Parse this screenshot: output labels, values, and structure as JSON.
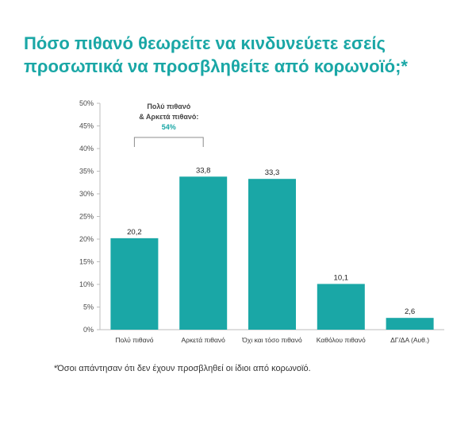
{
  "title_lines": [
    "Πόσο πιθανό θεωρείτε να κινδυνεύετε εσείς",
    "προσωπικά να προσβληθείτε από κορωνοϊό;*"
  ],
  "footnote": "*Όσοι απάντησαν ότι δεν έχουν προσβληθεί οι ίδιοι από κορωνοϊό.",
  "colors": {
    "bar": "#1aa7a6",
    "title": "#1aa7a6",
    "annotation_value": "#1aa7a6"
  },
  "chart_data": {
    "type": "bar",
    "title": "Πόσο πιθανό θεωρείτε να κινδυνεύετε εσείς προσωπικά να προσβληθείτε από κορωνοϊό;*",
    "categories": [
      "Πολύ πιθανό",
      "Αρκετά πιθανό",
      "Όχι και τόσο πιθανό",
      "Καθόλου πιθανό",
      "ΔΓ/ΔΑ (Αυθ.)"
    ],
    "values": [
      20.2,
      33.8,
      33.3,
      10.1,
      2.6
    ],
    "value_labels": [
      "20,2",
      "33,8",
      "33,3",
      "10,1",
      "2,6"
    ],
    "ylim": [
      0,
      50
    ],
    "y_ticks": [
      0,
      5,
      10,
      15,
      20,
      25,
      30,
      35,
      40,
      45,
      50
    ],
    "y_tick_labels": [
      "0%",
      "5%",
      "10%",
      "15%",
      "20%",
      "25%",
      "30%",
      "35%",
      "40%",
      "45%",
      "50%"
    ],
    "xlabel": "",
    "ylabel": "",
    "grid": false,
    "annotation": {
      "lines": [
        "Πολύ πιθανό",
        "& Αρκετά πιθανό:"
      ],
      "value": "54%",
      "spans_categories": [
        0,
        1
      ]
    }
  }
}
